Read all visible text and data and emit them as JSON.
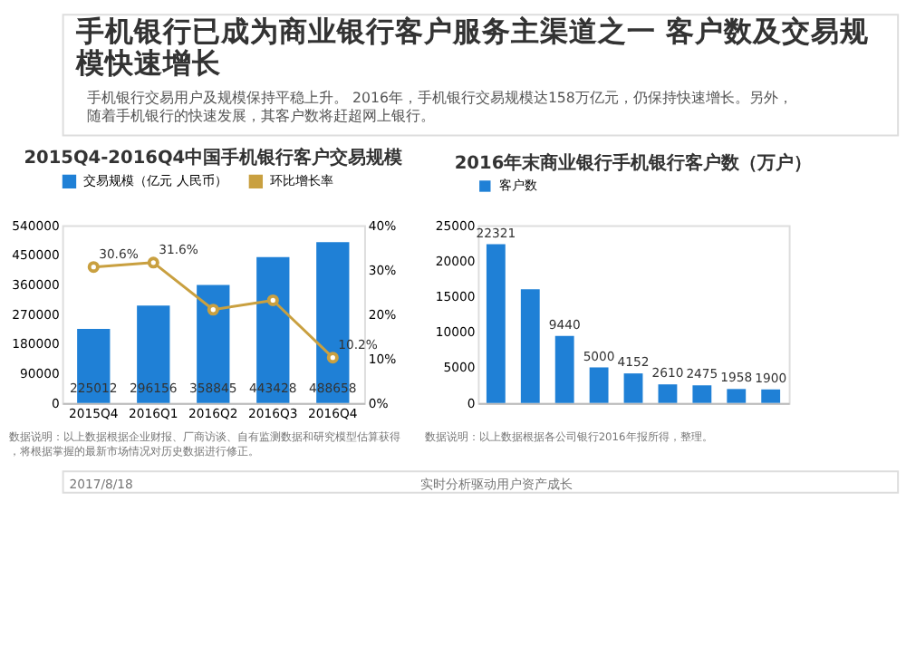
{
  "chart_data": [
    {
      "type": "other",
      "title": "手机银行已成为商业银行客户服务主渠道之一 客户数及交易规模快速增长",
      "subtitle": "手机银行交易用户及规模保持平稳上升。 2016年，手机银行交易规模达158万亿元，仍保持快速增长。另外，随着手机银行的快速发展，其客户数将赶超网上银行。",
      "annotations": [
        "2017/8/18",
        "实时分析驱动用户资产成长"
      ]
    },
    {
      "type": "bar",
      "title": "2015Q4-2016Q4中国手机银行客户交易规模",
      "categories": [
        "2015Q4",
        "2016Q1",
        "2016Q2",
        "2016Q3",
        "2016Q4"
      ],
      "series": [
        {
          "name": "交易规模（亿元 人民币）",
          "color": "#1f80d6",
          "values": [
            225012,
            296156,
            358845,
            443428,
            488658
          ],
          "value_labels": [
            "225012",
            "296156",
            "358845",
            "443428",
            "488658"
          ]
        },
        {
          "name": "环比增长率",
          "type": "line",
          "axis": "y2",
          "color": "#c9a040",
          "values": [
            30.6,
            31.6,
            21,
            23.1,
            10.2
          ],
          "value_labels": [
            "30.6%",
            "31.6%",
            null,
            null,
            "10.2%"
          ]
        }
      ],
      "ylim": [
        0,
        540000
      ],
      "yticks": [
        0,
        90000,
        180000,
        270000,
        360000,
        450000,
        540000
      ],
      "y2lim": [
        0,
        40
      ],
      "y2ticks": [
        {
          "value": 0,
          "label": "0%"
        },
        {
          "value": 10,
          "label": "10%"
        },
        {
          "value": 20,
          "label": "20%"
        },
        {
          "value": 30,
          "label": "30%"
        },
        {
          "value": 40,
          "label": "40%"
        }
      ],
      "marker": "circle",
      "legend": "top",
      "grid": false,
      "annotations": [
        "数据说明：以上数据根据企业财报、厂商访谈、自有监测数据和研究模型估算获得，将根据掌握的最新市场情况对历史数据进行修正。"
      ]
    },
    {
      "type": "bar",
      "title": "2016年末商业银行手机银行客户数（万户）",
      "categories": [
        null,
        null,
        null,
        null,
        null,
        null,
        null,
        null,
        null
      ],
      "series": [
        {
          "name": "客户数",
          "color": "#1f80d6",
          "values": [
            22321,
            16000,
            9440,
            5000,
            4152,
            2610,
            2475,
            1958,
            1900
          ],
          "value_labels": [
            "22321",
            null,
            "9440",
            "5000",
            "4152",
            "2610",
            "2475",
            "1958",
            "1900"
          ]
        }
      ],
      "ylim": [
        0,
        25000
      ],
      "yticks": [
        0,
        5000,
        10000,
        15000,
        20000,
        25000
      ],
      "legend": "top",
      "grid": false,
      "annotations": [
        "数据说明：以上数据根据各公司银行2016年报所得，整理。"
      ]
    }
  ]
}
